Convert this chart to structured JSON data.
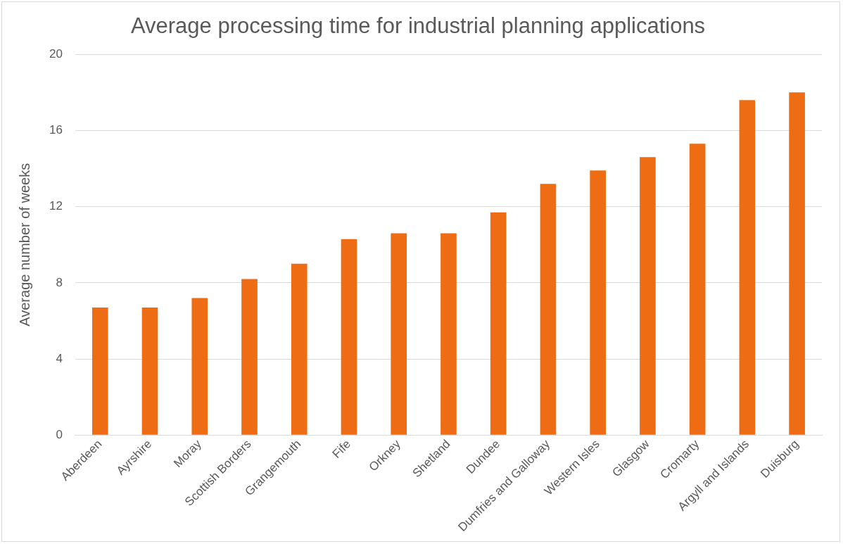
{
  "chart_data": {
    "type": "bar",
    "title": "Average processing time for industrial planning applications",
    "ylabel": "Average number of weeks",
    "categories": [
      "Aberdeen",
      "Ayrshire",
      "Moray",
      "Scottish Borders",
      "Grangemouth",
      "Fife",
      "Orkney",
      "Shetland",
      "Dundee",
      "Dumfries and Galloway",
      "Western Isles",
      "Glasgow",
      "Cromarty",
      "Argyll and Islands",
      "Duisburg"
    ],
    "values": [
      6.7,
      6.7,
      7.2,
      8.2,
      9.0,
      10.3,
      10.6,
      10.6,
      11.7,
      13.2,
      13.9,
      14.6,
      15.3,
      17.6,
      18.0
    ],
    "color": "#ed6c14",
    "ylim": [
      0,
      20
    ],
    "yticks": [
      0,
      4,
      8,
      12,
      16,
      20
    ],
    "grid": "y"
  }
}
